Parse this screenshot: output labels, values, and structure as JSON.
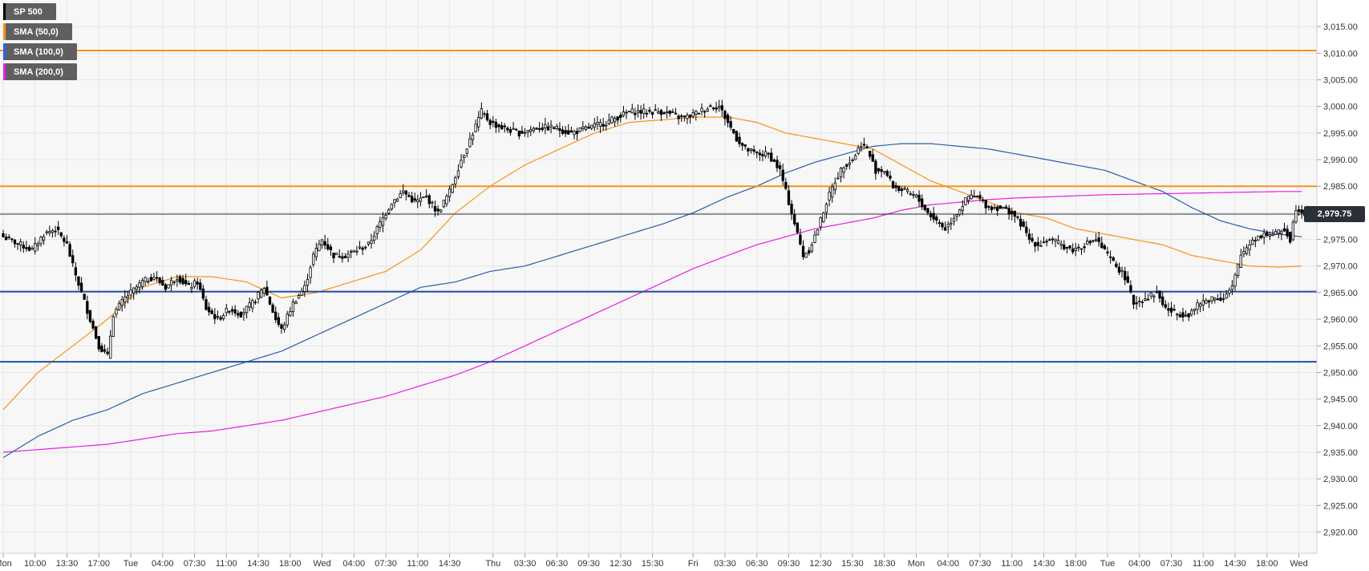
{
  "legend": [
    {
      "label": "SP 500",
      "color": "#000000"
    },
    {
      "label": "SMA (50,0)",
      "color": "#f7931a"
    },
    {
      "label": "SMA (100,0)",
      "color": "#2962ff"
    },
    {
      "label": "SMA (200,0)",
      "color": "#e91ee0"
    }
  ],
  "last_price_label": "2,979.75",
  "colors": {
    "orange_level": "#f7931a",
    "blue_level": "#1f4fa8",
    "sma50": "#f7931a",
    "sma100": "#2a5ea8",
    "sma200": "#e91ee0",
    "candle": "#000000",
    "grid": "#e6e6e6",
    "background": "#f7f7f7"
  },
  "chart_data": {
    "type": "candlestick",
    "symbol": "SP 500",
    "ylim": [
      2916,
      3020
    ],
    "yticks": [
      2920,
      2925,
      2930,
      2935,
      2940,
      2945,
      2950,
      2955,
      2960,
      2965,
      2970,
      2975,
      2980,
      2985,
      2990,
      2995,
      3000,
      3005,
      3010,
      3015
    ],
    "ytick_labels": [
      "2,920.00",
      "2,925.00",
      "2,930.00",
      "2,935.00",
      "2,940.00",
      "2,945.00",
      "2,950.00",
      "2,955.00",
      "2,960.00",
      "2,965.00",
      "2,970.00",
      "2,975.00",
      "2,980.00",
      "2,985.00",
      "2,990.00",
      "2,995.00",
      "3,000.00",
      "3,005.00",
      "3,010.00",
      "3,015.00"
    ],
    "xticks": [
      {
        "bar": 0,
        "label": "Mon"
      },
      {
        "bar": 11,
        "label": "10:00"
      },
      {
        "bar": 22,
        "label": "13:30"
      },
      {
        "bar": 33,
        "label": "17:00"
      },
      {
        "bar": 44,
        "label": "Tue"
      },
      {
        "bar": 55,
        "label": "04:00"
      },
      {
        "bar": 66,
        "label": "07:30"
      },
      {
        "bar": 77,
        "label": "11:00"
      },
      {
        "bar": 88,
        "label": "14:30"
      },
      {
        "bar": 99,
        "label": "18:00"
      },
      {
        "bar": 110,
        "label": "Wed"
      },
      {
        "bar": 121,
        "label": "04:00"
      },
      {
        "bar": 132,
        "label": "07:30"
      },
      {
        "bar": 143,
        "label": "11:00"
      },
      {
        "bar": 154,
        "label": "14:30"
      },
      {
        "bar": 169,
        "label": "Thu"
      },
      {
        "bar": 180,
        "label": "03:30"
      },
      {
        "bar": 191,
        "label": "06:30"
      },
      {
        "bar": 202,
        "label": "09:30"
      },
      {
        "bar": 213,
        "label": "12:30"
      },
      {
        "bar": 224,
        "label": "15:30"
      },
      {
        "bar": 238,
        "label": "Fri"
      },
      {
        "bar": 249,
        "label": "03:30"
      },
      {
        "bar": 260,
        "label": "06:30"
      },
      {
        "bar": 271,
        "label": "09:30"
      },
      {
        "bar": 282,
        "label": "12:30"
      },
      {
        "bar": 293,
        "label": "15:30"
      },
      {
        "bar": 304,
        "label": "18:30"
      },
      {
        "bar": 315,
        "label": "Mon"
      },
      {
        "bar": 326,
        "label": "04:00"
      },
      {
        "bar": 337,
        "label": "07:30"
      },
      {
        "bar": 348,
        "label": "11:00"
      },
      {
        "bar": 359,
        "label": "14:30"
      },
      {
        "bar": 370,
        "label": "18:00"
      },
      {
        "bar": 381,
        "label": "Tue"
      },
      {
        "bar": 392,
        "label": "04:00"
      },
      {
        "bar": 403,
        "label": "07:30"
      },
      {
        "bar": 414,
        "label": "11:00"
      },
      {
        "bar": 425,
        "label": "14:30"
      },
      {
        "bar": 436,
        "label": "18:00"
      },
      {
        "bar": 447,
        "label": "Wed"
      }
    ],
    "bar_count": 452,
    "horizontal_levels": [
      {
        "value": 3010.5,
        "color": "orange"
      },
      {
        "value": 2985,
        "color": "orange"
      },
      {
        "value": 2965.2,
        "color": "blue"
      },
      {
        "value": 2952,
        "color": "blue"
      }
    ],
    "last_price": 2979.75,
    "close_path": [
      [
        0,
        2975.5
      ],
      [
        6,
        2974
      ],
      [
        10,
        2973
      ],
      [
        14,
        2976
      ],
      [
        18,
        2977
      ],
      [
        22,
        2974
      ],
      [
        24,
        2970
      ],
      [
        27,
        2965
      ],
      [
        30,
        2960
      ],
      [
        33,
        2955
      ],
      [
        36,
        2953
      ],
      [
        38,
        2961
      ],
      [
        42,
        2964
      ],
      [
        48,
        2967
      ],
      [
        52,
        2968
      ],
      [
        56,
        2966
      ],
      [
        60,
        2968
      ],
      [
        64,
        2966
      ],
      [
        67,
        2967
      ],
      [
        70,
        2962
      ],
      [
        74,
        2960
      ],
      [
        78,
        2962
      ],
      [
        82,
        2961
      ],
      [
        86,
        2963
      ],
      [
        90,
        2966
      ],
      [
        94,
        2960
      ],
      [
        96,
        2958
      ],
      [
        100,
        2963
      ],
      [
        104,
        2966
      ],
      [
        107,
        2972
      ],
      [
        110,
        2975
      ],
      [
        114,
        2972
      ],
      [
        118,
        2972
      ],
      [
        122,
        2973
      ],
      [
        126,
        2974
      ],
      [
        130,
        2978
      ],
      [
        134,
        2982
      ],
      [
        138,
        2984
      ],
      [
        142,
        2982
      ],
      [
        146,
        2983
      ],
      [
        150,
        2980
      ],
      [
        154,
        2984
      ],
      [
        158,
        2990
      ],
      [
        162,
        2995
      ],
      [
        165,
        2999
      ],
      [
        168,
        2997
      ],
      [
        172,
        2996
      ],
      [
        178,
        2995
      ],
      [
        184,
        2996
      ],
      [
        190,
        2996
      ],
      [
        196,
        2995
      ],
      [
        202,
        2996
      ],
      [
        208,
        2997
      ],
      [
        212,
        2998
      ],
      [
        216,
        2999
      ],
      [
        222,
        2999
      ],
      [
        228,
        2999
      ],
      [
        233,
        2998
      ],
      [
        236,
        2998
      ],
      [
        240,
        2999
      ],
      [
        244,
        3000
      ],
      [
        247,
        3000
      ],
      [
        250,
        2997
      ],
      [
        253,
        2994
      ],
      [
        256,
        2992
      ],
      [
        260,
        2991
      ],
      [
        264,
        2991
      ],
      [
        268,
        2988
      ],
      [
        270,
        2984
      ],
      [
        273,
        2978
      ],
      [
        276,
        2972
      ],
      [
        278,
        2973
      ],
      [
        281,
        2977
      ],
      [
        284,
        2982
      ],
      [
        287,
        2986
      ],
      [
        290,
        2989
      ],
      [
        293,
        2990
      ],
      [
        296,
        2993
      ],
      [
        298,
        2992
      ],
      [
        301,
        2988
      ],
      [
        304,
        2988
      ],
      [
        307,
        2985
      ],
      [
        311,
        2984
      ],
      [
        315,
        2983
      ],
      [
        319,
        2980
      ],
      [
        323,
        2978
      ],
      [
        325,
        2977
      ],
      [
        329,
        2980
      ],
      [
        333,
        2983
      ],
      [
        336,
        2983
      ],
      [
        340,
        2981
      ],
      [
        344,
        2981
      ],
      [
        348,
        2980
      ],
      [
        351,
        2978
      ],
      [
        354,
        2975
      ],
      [
        357,
        2974
      ],
      [
        361,
        2975
      ],
      [
        365,
        2974
      ],
      [
        369,
        2973
      ],
      [
        373,
        2974
      ],
      [
        377,
        2975
      ],
      [
        381,
        2972
      ],
      [
        384,
        2970
      ],
      [
        387,
        2968
      ],
      [
        390,
        2963
      ],
      [
        394,
        2964
      ],
      [
        398,
        2965
      ],
      [
        401,
        2962
      ],
      [
        405,
        2961
      ],
      [
        409,
        2961
      ],
      [
        413,
        2963
      ],
      [
        417,
        2964
      ],
      [
        421,
        2964
      ],
      [
        424,
        2966
      ],
      [
        427,
        2972
      ],
      [
        431,
        2975
      ],
      [
        435,
        2976
      ],
      [
        439,
        2976
      ],
      [
        442,
        2977
      ],
      [
        444,
        2975
      ],
      [
        446,
        2981
      ],
      [
        449,
        2980
      ],
      [
        451,
        2979.75
      ]
    ],
    "sma50": [
      [
        0,
        2943
      ],
      [
        12,
        2950
      ],
      [
        24,
        2955
      ],
      [
        36,
        2960
      ],
      [
        48,
        2966
      ],
      [
        60,
        2968
      ],
      [
        72,
        2968
      ],
      [
        84,
        2967
      ],
      [
        96,
        2964
      ],
      [
        108,
        2965
      ],
      [
        120,
        2967
      ],
      [
        132,
        2969
      ],
      [
        144,
        2973
      ],
      [
        156,
        2980
      ],
      [
        168,
        2985
      ],
      [
        180,
        2989
      ],
      [
        192,
        2992
      ],
      [
        204,
        2995
      ],
      [
        216,
        2997
      ],
      [
        228,
        2997.5
      ],
      [
        238,
        2998
      ],
      [
        250,
        2998
      ],
      [
        260,
        2997
      ],
      [
        270,
        2995
      ],
      [
        280,
        2994
      ],
      [
        290,
        2993
      ],
      [
        300,
        2992
      ],
      [
        310,
        2989
      ],
      [
        320,
        2986
      ],
      [
        330,
        2984
      ],
      [
        340,
        2982
      ],
      [
        350,
        2980
      ],
      [
        360,
        2979
      ],
      [
        370,
        2977
      ],
      [
        380,
        2976
      ],
      [
        390,
        2975
      ],
      [
        400,
        2974
      ],
      [
        410,
        2972
      ],
      [
        420,
        2971
      ],
      [
        430,
        2970
      ],
      [
        440,
        2969.8
      ],
      [
        448,
        2970
      ]
    ],
    "sma100": [
      [
        0,
        2934
      ],
      [
        12,
        2938
      ],
      [
        24,
        2941
      ],
      [
        36,
        2943
      ],
      [
        48,
        2946
      ],
      [
        60,
        2948
      ],
      [
        72,
        2950
      ],
      [
        84,
        2952
      ],
      [
        96,
        2954
      ],
      [
        108,
        2957
      ],
      [
        120,
        2960
      ],
      [
        132,
        2963
      ],
      [
        144,
        2966
      ],
      [
        156,
        2967
      ],
      [
        168,
        2969
      ],
      [
        180,
        2970
      ],
      [
        192,
        2972
      ],
      [
        204,
        2974
      ],
      [
        216,
        2976
      ],
      [
        228,
        2978
      ],
      [
        238,
        2980
      ],
      [
        250,
        2983
      ],
      [
        260,
        2985
      ],
      [
        270,
        2987.5
      ],
      [
        280,
        2989.5
      ],
      [
        290,
        2991
      ],
      [
        300,
        2992.5
      ],
      [
        310,
        2993
      ],
      [
        320,
        2993
      ],
      [
        330,
        2992.5
      ],
      [
        340,
        2992
      ],
      [
        350,
        2991
      ],
      [
        360,
        2990
      ],
      [
        370,
        2989
      ],
      [
        380,
        2988
      ],
      [
        390,
        2986
      ],
      [
        400,
        2984
      ],
      [
        410,
        2981
      ],
      [
        420,
        2978.5
      ],
      [
        430,
        2977
      ],
      [
        440,
        2976
      ],
      [
        448,
        2975.5
      ]
    ],
    "sma200": [
      [
        0,
        2935
      ],
      [
        12,
        2935.5
      ],
      [
        24,
        2936
      ],
      [
        36,
        2936.5
      ],
      [
        48,
        2937.5
      ],
      [
        60,
        2938.5
      ],
      [
        72,
        2939
      ],
      [
        84,
        2940
      ],
      [
        96,
        2941
      ],
      [
        108,
        2942.5
      ],
      [
        120,
        2944
      ],
      [
        132,
        2945.5
      ],
      [
        144,
        2947.5
      ],
      [
        156,
        2949.5
      ],
      [
        168,
        2952
      ],
      [
        180,
        2955
      ],
      [
        192,
        2958
      ],
      [
        204,
        2961
      ],
      [
        216,
        2964
      ],
      [
        228,
        2967
      ],
      [
        238,
        2969.5
      ],
      [
        250,
        2972
      ],
      [
        260,
        2974
      ],
      [
        270,
        2975.5
      ],
      [
        280,
        2977
      ],
      [
        290,
        2978
      ],
      [
        300,
        2979
      ],
      [
        310,
        2980.5
      ],
      [
        320,
        2981.5
      ],
      [
        330,
        2982
      ],
      [
        340,
        2982.5
      ],
      [
        350,
        2982.8
      ],
      [
        360,
        2983
      ],
      [
        370,
        2983.2
      ],
      [
        380,
        2983.4
      ],
      [
        390,
        2983.5
      ],
      [
        400,
        2983.6
      ],
      [
        410,
        2983.7
      ],
      [
        420,
        2983.8
      ],
      [
        430,
        2983.9
      ],
      [
        440,
        2984
      ],
      [
        448,
        2984
      ]
    ]
  }
}
